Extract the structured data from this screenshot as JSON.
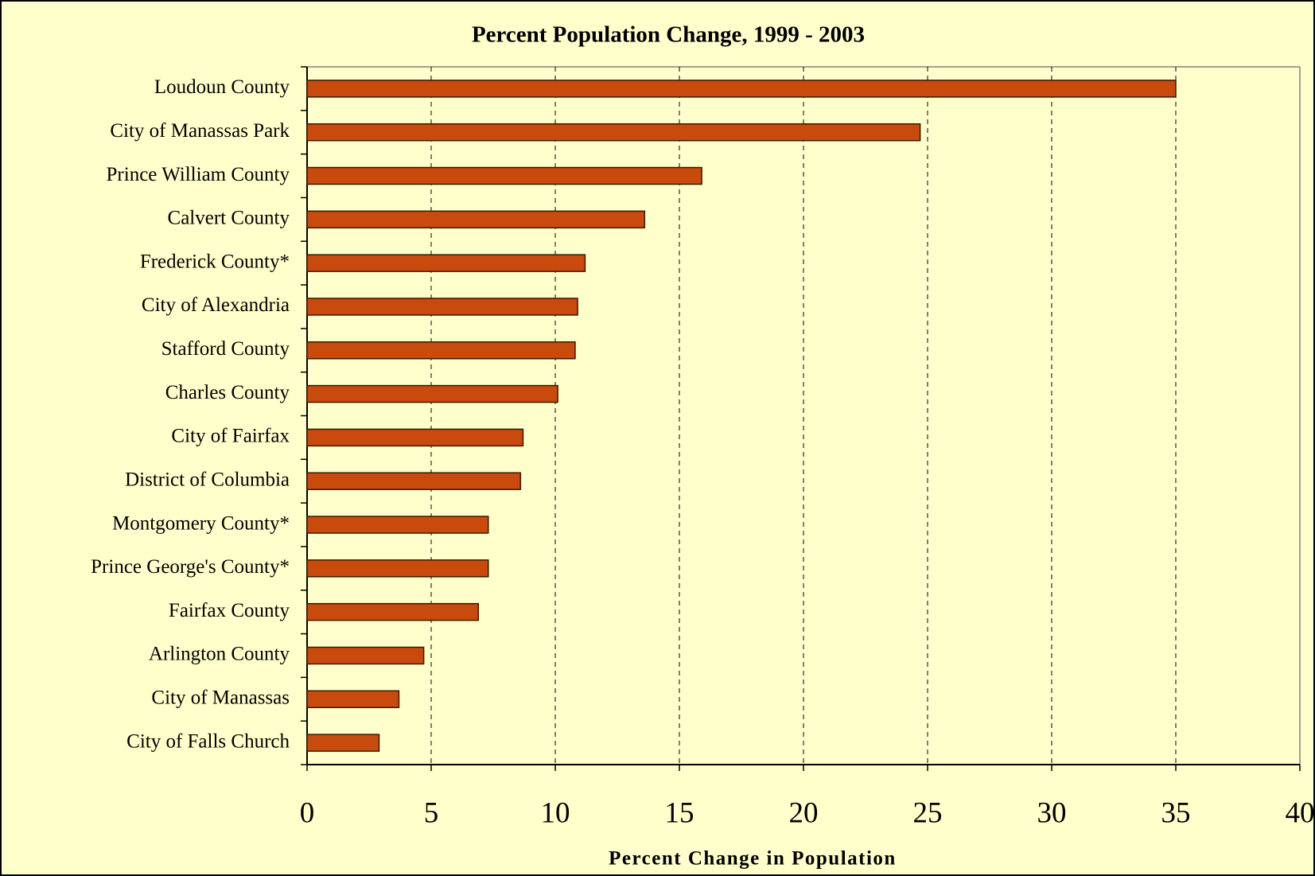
{
  "chart_data": {
    "type": "bar",
    "orientation": "horizontal",
    "title": "Percent Population Change, 1999 - 2003",
    "x_label": "Percent Change in Population",
    "categories": [
      "Loudoun County",
      "City of Manassas Park",
      "Prince William County",
      "Calvert County",
      "Frederick County*",
      "City of Alexandria",
      "Stafford County",
      "Charles County",
      "City of Fairfax",
      "District of Columbia",
      "Montgomery County*",
      "Prince George's County*",
      "Fairfax County",
      "Arlington County",
      "City of Manassas",
      "City of Falls Church"
    ],
    "values": [
      35.0,
      24.7,
      15.9,
      13.6,
      11.2,
      10.9,
      10.8,
      10.1,
      8.7,
      8.6,
      7.3,
      7.3,
      6.9,
      4.7,
      3.7,
      2.9
    ],
    "color": "#c84a0c",
    "xlim": [
      0,
      40
    ],
    "xticks": [
      0,
      5,
      10,
      15,
      20,
      25,
      30,
      35,
      40
    ],
    "grid": true
  }
}
